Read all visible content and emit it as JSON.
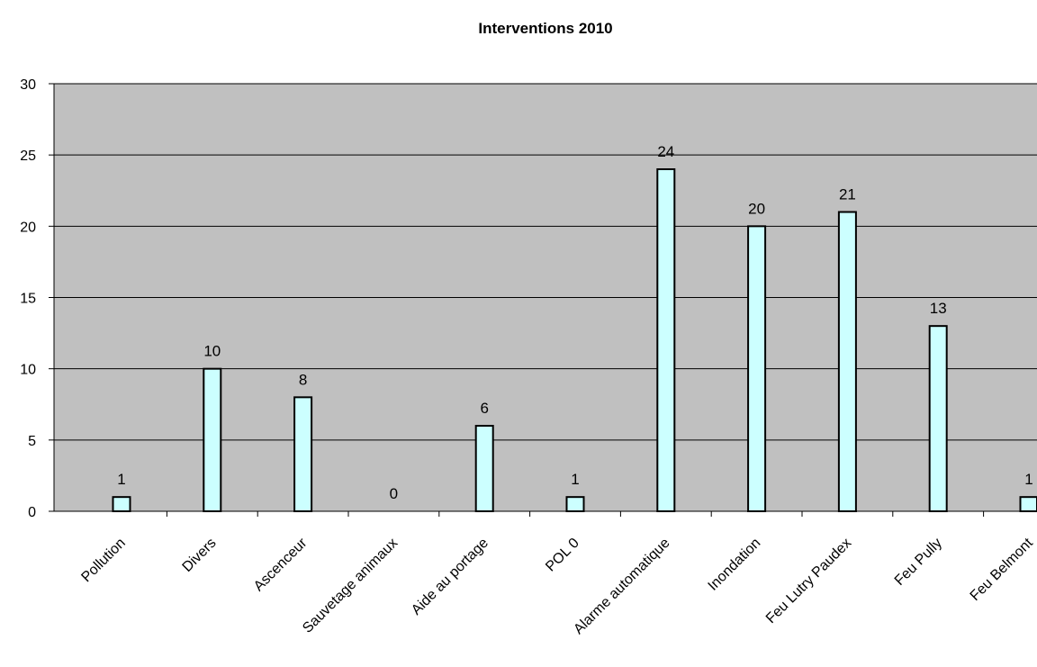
{
  "chart_data": {
    "type": "bar",
    "title": "Interventions 2010",
    "xlabel": "",
    "ylabel": "",
    "categories": [
      "Pollution",
      "Divers",
      "Ascenceur",
      "Sauvetage animaux",
      "Aide au portage",
      "POL 0",
      "Alarme automatique",
      "Inondation",
      "Feu Lutry Paudex",
      "Feu Pully",
      "Feu Belmont"
    ],
    "values": [
      1,
      10,
      8,
      0,
      6,
      1,
      24,
      20,
      21,
      13,
      1
    ],
    "ylim": [
      0,
      30
    ],
    "yticks": [
      0,
      5,
      10,
      15,
      20,
      25,
      30
    ],
    "grid": true,
    "legend": "none",
    "data_labels": true,
    "colors": {
      "plot_background": "#c0c0c0",
      "bar_fill": "#ccffff",
      "bar_stroke": "#000000",
      "gridline": "#000000",
      "axis": "#000000"
    }
  }
}
